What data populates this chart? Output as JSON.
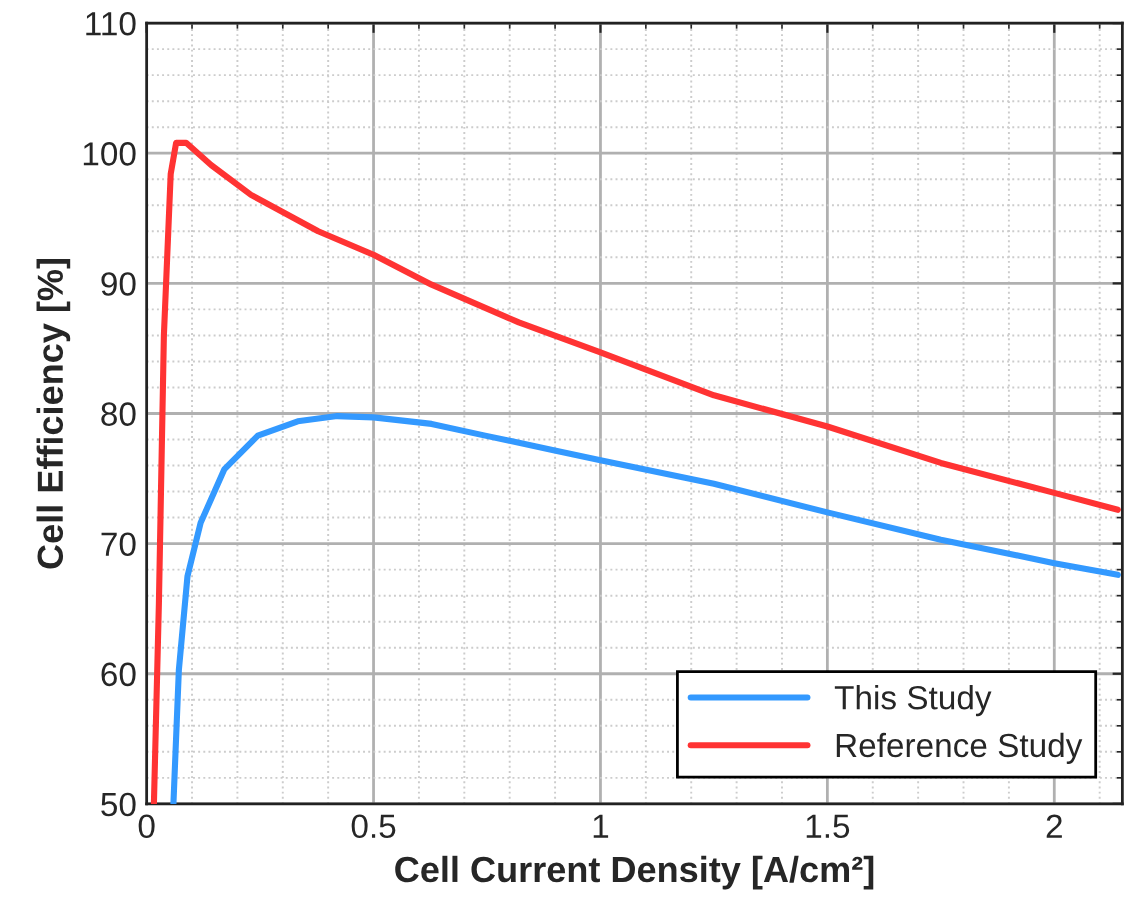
{
  "chart_data": {
    "type": "line",
    "xlabel": "Cell Current Density [A/cm²]",
    "ylabel": "Cell Efficiency [%]",
    "xlim": [
      0,
      2.15
    ],
    "ylim": [
      50,
      110
    ],
    "xticks": [
      0,
      0.5,
      1,
      1.5,
      2
    ],
    "yticks": [
      50,
      60,
      70,
      80,
      90,
      100,
      110
    ],
    "grid": true,
    "legend": "bottom right",
    "line_style": "solid",
    "marker": "none",
    "series": [
      {
        "name": "This Study",
        "color": "#3399ff",
        "x": [
          0.059,
          0.071,
          0.09,
          0.119,
          0.171,
          0.245,
          0.333,
          0.42,
          0.5,
          0.628,
          0.746,
          0.894,
          1.0,
          1.25,
          1.5,
          1.75,
          2.0,
          2.14
        ],
        "values": [
          50,
          60.3,
          67.5,
          71.6,
          75.7,
          78.3,
          79.4,
          79.8,
          79.7,
          79.2,
          78.3,
          77.2,
          76.4,
          74.6,
          72.4,
          70.3,
          68.5,
          67.6
        ]
      },
      {
        "name": "Reference Study",
        "color": "#ff3333",
        "x": [
          0.016,
          0.027,
          0.038,
          0.053,
          0.065,
          0.087,
          0.142,
          0.23,
          0.378,
          0.5,
          0.628,
          0.82,
          1.0,
          1.25,
          1.5,
          1.75,
          2.0,
          2.14
        ],
        "values": [
          50,
          65.4,
          86,
          98.4,
          100.8,
          100.8,
          99.1,
          96.8,
          94.0,
          92.2,
          89.9,
          87.0,
          84.7,
          81.4,
          79.0,
          76.2,
          73.9,
          72.6
        ]
      }
    ]
  }
}
